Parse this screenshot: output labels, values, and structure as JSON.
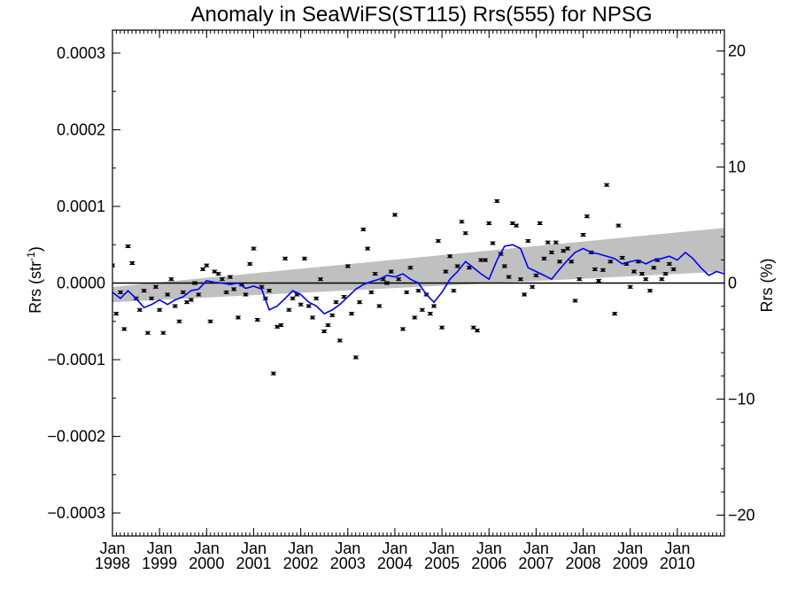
{
  "chart_data": {
    "type": "scatter",
    "title": "Anomaly in SeaWiFS(ST115) Rrs(555) for NPSG",
    "ylabel_left": {
      "main": "Rrs (str",
      "sup": "-1",
      "close": ")"
    },
    "ylabel_right": "Rrs (%)",
    "xlabel": "",
    "xlim": [
      1998.0,
      2011.0
    ],
    "ylim": [
      -0.00033,
      0.00033
    ],
    "ylim_right_percent": [
      -21.8,
      21.8
    ],
    "yticks_left": [
      {
        "value": 0.0003,
        "label": "0.0003"
      },
      {
        "value": 0.0002,
        "label": "0.0002"
      },
      {
        "value": 0.0001,
        "label": "0.0001"
      },
      {
        "value": 0.0,
        "label": "0.0000"
      },
      {
        "value": -0.0001,
        "label": "−0.0001"
      },
      {
        "value": -0.0002,
        "label": "−0.0002"
      },
      {
        "value": -0.0003,
        "label": "−0.0003"
      }
    ],
    "yticks_right": [
      {
        "value": 20,
        "label": "20"
      },
      {
        "value": 10,
        "label": "10"
      },
      {
        "value": 0,
        "label": "0"
      },
      {
        "value": -10,
        "label": "−10"
      },
      {
        "value": -20,
        "label": "−20"
      }
    ],
    "xticks": [
      {
        "value": 1998,
        "month": "Jan",
        "year": "1998"
      },
      {
        "value": 1999,
        "month": "Jan",
        "year": "1999"
      },
      {
        "value": 2000,
        "month": "Jan",
        "year": "2000"
      },
      {
        "value": 2001,
        "month": "Jan",
        "year": "2001"
      },
      {
        "value": 2002,
        "month": "Jan",
        "year": "2002"
      },
      {
        "value": 2003,
        "month": "Jan",
        "year": "2003"
      },
      {
        "value": 2004,
        "month": "Jan",
        "year": "2004"
      },
      {
        "value": 2005,
        "month": "Jan",
        "year": "2005"
      },
      {
        "value": 2006,
        "month": "Jan",
        "year": "2006"
      },
      {
        "value": 2007,
        "month": "Jan",
        "year": "2007"
      },
      {
        "value": 2008,
        "month": "Jan",
        "year": "2008"
      },
      {
        "value": 2009,
        "month": "Jan",
        "year": "2009"
      },
      {
        "value": 2010,
        "month": "Jan",
        "year": "2010"
      }
    ],
    "trend_band": {
      "color": "#c0c0c0",
      "upper": [
        [
          1998.0,
          -5e-06
        ],
        [
          2011.0,
          7.2e-05
        ]
      ],
      "lower": [
        [
          1998.0,
          -2.5e-05
        ],
        [
          2011.0,
          1.5e-05
        ]
      ]
    },
    "zero_line": 0.0,
    "running_mean": {
      "color": "#0000ff",
      "points": [
        [
          1998.0,
          -1.2e-05
        ],
        [
          1998.17,
          -2e-05
        ],
        [
          1998.33,
          -1e-05
        ],
        [
          1998.5,
          -2e-05
        ],
        [
          1998.67,
          -3.2e-05
        ],
        [
          1998.83,
          -2.8e-05
        ],
        [
          1999.0,
          -2.2e-05
        ],
        [
          1999.17,
          -2.8e-05
        ],
        [
          1999.33,
          -2.2e-05
        ],
        [
          1999.5,
          -1.8e-05
        ],
        [
          1999.67,
          -1e-05
        ],
        [
          1999.83,
          -8e-06
        ],
        [
          2000.0,
          3e-06
        ],
        [
          2000.17,
          1e-06
        ],
        [
          2000.33,
          0.0
        ],
        [
          2000.5,
          -2e-06
        ],
        [
          2000.67,
          0.0
        ],
        [
          2000.83,
          -7e-06
        ],
        [
          2001.0,
          -4e-06
        ],
        [
          2001.17,
          -8e-06
        ],
        [
          2001.33,
          -3.5e-05
        ],
        [
          2001.5,
          -3e-05
        ],
        [
          2001.67,
          -2e-05
        ],
        [
          2001.83,
          -1e-05
        ],
        [
          2002.0,
          -1.5e-05
        ],
        [
          2002.17,
          -2.5e-05
        ],
        [
          2002.33,
          -3e-05
        ],
        [
          2002.5,
          -4e-05
        ],
        [
          2002.67,
          -3.5e-05
        ],
        [
          2002.83,
          -2.8e-05
        ],
        [
          2003.0,
          -1.8e-05
        ],
        [
          2003.17,
          -8e-06
        ],
        [
          2003.33,
          -2e-06
        ],
        [
          2003.5,
          2e-06
        ],
        [
          2003.67,
          5e-06
        ],
        [
          2003.83,
          1e-05
        ],
        [
          2004.0,
          8e-06
        ],
        [
          2004.17,
          1.2e-05
        ],
        [
          2004.33,
          5e-06
        ],
        [
          2004.5,
          0.0
        ],
        [
          2004.67,
          -1.5e-05
        ],
        [
          2004.83,
          -2.5e-05
        ],
        [
          2005.0,
          -1.2e-05
        ],
        [
          2005.17,
          5e-06
        ],
        [
          2005.33,
          1.5e-05
        ],
        [
          2005.5,
          2.8e-05
        ],
        [
          2005.67,
          2e-05
        ],
        [
          2005.83,
          1.2e-05
        ],
        [
          2006.0,
          5e-06
        ],
        [
          2006.17,
          3e-05
        ],
        [
          2006.33,
          4.8e-05
        ],
        [
          2006.5,
          5e-05
        ],
        [
          2006.67,
          4.5e-05
        ],
        [
          2006.83,
          2e-05
        ],
        [
          2007.0,
          1.5e-05
        ],
        [
          2007.17,
          1e-05
        ],
        [
          2007.33,
          5e-06
        ],
        [
          2007.5,
          1.8e-05
        ],
        [
          2007.67,
          3e-05
        ],
        [
          2007.83,
          4e-05
        ],
        [
          2008.0,
          4.5e-05
        ],
        [
          2008.17,
          4e-05
        ],
        [
          2008.33,
          3.8e-05
        ],
        [
          2008.5,
          3.5e-05
        ],
        [
          2008.67,
          3.2e-05
        ],
        [
          2008.83,
          2.5e-05
        ],
        [
          2009.0,
          2.8e-05
        ],
        [
          2009.17,
          3e-05
        ],
        [
          2009.33,
          2.5e-05
        ],
        [
          2009.5,
          3e-05
        ],
        [
          2009.67,
          3.2e-05
        ],
        [
          2009.83,
          3.5e-05
        ],
        [
          2010.0,
          3e-05
        ],
        [
          2010.17,
          4e-05
        ],
        [
          2010.33,
          3.2e-05
        ],
        [
          2010.5,
          2e-05
        ],
        [
          2010.67,
          1e-05
        ],
        [
          2010.83,
          1.5e-05
        ],
        [
          2011.0,
          1.2e-05
        ]
      ]
    },
    "series": [
      {
        "marker": "error-bar-point",
        "color": "#000000",
        "points": [
          [
            1998.0,
            2.3e-05
          ],
          [
            1998.08,
            -4e-05
          ],
          [
            1998.17,
            -1.2e-05
          ],
          [
            1998.25,
            -6e-05
          ],
          [
            1998.33,
            4.8e-05
          ],
          [
            1998.42,
            2.6e-05
          ],
          [
            1998.5,
            -2e-05
          ],
          [
            1998.58,
            -3.5e-05
          ],
          [
            1998.67,
            -1e-05
          ],
          [
            1998.75,
            -6.5e-05
          ],
          [
            1998.83,
            -2e-05
          ],
          [
            1998.92,
            -5e-06
          ],
          [
            1999.0,
            -3.5e-05
          ],
          [
            1999.08,
            -6.5e-05
          ],
          [
            1999.17,
            -1.5e-05
          ],
          [
            1999.25,
            5e-06
          ],
          [
            1999.33,
            -3e-05
          ],
          [
            1999.42,
            -5e-05
          ],
          [
            1999.5,
            -1.2e-05
          ],
          [
            1999.58,
            -2.5e-05
          ],
          [
            1999.67,
            -2.2e-05
          ],
          [
            1999.75,
            0.0
          ],
          [
            1999.83,
            -1.5e-05
          ],
          [
            1999.92,
            1.8e-05
          ],
          [
            2000.0,
            2.3e-05
          ],
          [
            2000.08,
            -5e-05
          ],
          [
            2000.17,
            1.5e-05
          ],
          [
            2000.25,
            1.2e-05
          ],
          [
            2000.33,
            5e-06
          ],
          [
            2000.42,
            -1.2e-05
          ],
          [
            2000.5,
            8e-06
          ],
          [
            2000.58,
            -8e-06
          ],
          [
            2000.67,
            -4.5e-05
          ],
          [
            2000.75,
            -2e-06
          ],
          [
            2000.83,
            -1.5e-05
          ],
          [
            2000.92,
            2.5e-05
          ],
          [
            2001.0,
            4.5e-05
          ],
          [
            2001.08,
            -4.8e-05
          ],
          [
            2001.17,
            -5e-06
          ],
          [
            2001.25,
            -2e-05
          ],
          [
            2001.33,
            -1e-05
          ],
          [
            2001.42,
            -0.000118
          ],
          [
            2001.5,
            -5.7e-05
          ],
          [
            2001.58,
            -5.5e-05
          ],
          [
            2001.67,
            3.2e-05
          ],
          [
            2001.75,
            -3.5e-05
          ],
          [
            2001.83,
            -2e-05
          ],
          [
            2001.92,
            -1.5e-05
          ],
          [
            2002.0,
            -2.8e-05
          ],
          [
            2002.08,
            3.2e-05
          ],
          [
            2002.17,
            -3e-05
          ],
          [
            2002.25,
            -4.5e-05
          ],
          [
            2002.33,
            -2e-05
          ],
          [
            2002.42,
            5e-06
          ],
          [
            2002.5,
            -6.3e-05
          ],
          [
            2002.58,
            -5.5e-05
          ],
          [
            2002.67,
            -4.2e-05
          ],
          [
            2002.75,
            -2.5e-05
          ],
          [
            2002.83,
            -7.5e-05
          ],
          [
            2002.92,
            -1.8e-05
          ],
          [
            2003.0,
            2.2e-05
          ],
          [
            2003.08,
            -4e-05
          ],
          [
            2003.17,
            -9.7e-05
          ],
          [
            2003.25,
            -2.5e-05
          ],
          [
            2003.33,
            7e-05
          ],
          [
            2003.42,
            4.5e-05
          ],
          [
            2003.5,
            -1.2e-05
          ],
          [
            2003.58,
            1.2e-05
          ],
          [
            2003.67,
            -3e-05
          ],
          [
            2003.75,
            5e-06
          ],
          [
            2003.83,
            0.0
          ],
          [
            2003.92,
            1.5e-05
          ],
          [
            2004.0,
            8.9e-05
          ],
          [
            2004.08,
            5e-06
          ],
          [
            2004.17,
            -6e-05
          ],
          [
            2004.25,
            -1.2e-05
          ],
          [
            2004.33,
            2e-05
          ],
          [
            2004.42,
            -4.5e-05
          ],
          [
            2004.5,
            -1e-05
          ],
          [
            2004.58,
            -3.5e-05
          ],
          [
            2004.67,
            -1.5e-05
          ],
          [
            2004.75,
            -4e-05
          ],
          [
            2004.83,
            -3e-05
          ],
          [
            2004.92,
            5.5e-05
          ],
          [
            2005.0,
            -5.8e-05
          ],
          [
            2005.08,
            1.5e-05
          ],
          [
            2005.17,
            3.5e-05
          ],
          [
            2005.25,
            -1e-05
          ],
          [
            2005.33,
            2.2e-05
          ],
          [
            2005.42,
            8e-05
          ],
          [
            2005.5,
            6.5e-05
          ],
          [
            2005.58,
            2e-05
          ],
          [
            2005.67,
            -5.8e-05
          ],
          [
            2005.75,
            -6.2e-05
          ],
          [
            2005.83,
            3e-05
          ],
          [
            2005.92,
            3e-05
          ],
          [
            2006.0,
            7.8e-05
          ],
          [
            2006.08,
            5.2e-05
          ],
          [
            2006.17,
            0.000107
          ],
          [
            2006.25,
            3.8e-05
          ],
          [
            2006.33,
            2.2e-05
          ],
          [
            2006.42,
            8e-06
          ],
          [
            2006.5,
            7.8e-05
          ],
          [
            2006.58,
            7.5e-05
          ],
          [
            2006.67,
            5e-06
          ],
          [
            2006.75,
            -1.5e-05
          ],
          [
            2006.83,
            5.5e-05
          ],
          [
            2006.92,
            -5e-06
          ],
          [
            2007.0,
            1e-05
          ],
          [
            2007.08,
            7.8e-05
          ],
          [
            2007.17,
            3.2e-05
          ],
          [
            2007.25,
            5.3e-05
          ],
          [
            2007.33,
            4e-05
          ],
          [
            2007.42,
            5.3e-05
          ],
          [
            2007.5,
            2.8e-05
          ],
          [
            2007.58,
            4.2e-05
          ],
          [
            2007.67,
            4.5e-05
          ],
          [
            2007.75,
            2.8e-05
          ],
          [
            2007.83,
            -2.3e-05
          ],
          [
            2007.92,
            5e-06
          ],
          [
            2008.0,
            6.3e-05
          ],
          [
            2008.08,
            8.7e-05
          ],
          [
            2008.17,
            4e-05
          ],
          [
            2008.25,
            1.8e-05
          ],
          [
            2008.33,
            3e-06
          ],
          [
            2008.42,
            1.7e-05
          ],
          [
            2008.5,
            0.000128
          ],
          [
            2008.58,
            2.8e-05
          ],
          [
            2008.67,
            -4e-05
          ],
          [
            2008.75,
            7.5e-05
          ],
          [
            2008.83,
            3.3e-05
          ],
          [
            2008.92,
            2.5e-05
          ],
          [
            2009.0,
            -5e-06
          ],
          [
            2009.08,
            1.5e-05
          ],
          [
            2009.17,
            2.8e-05
          ],
          [
            2009.25,
            1.2e-05
          ],
          [
            2009.33,
            5e-06
          ],
          [
            2009.42,
            -1e-05
          ],
          [
            2009.5,
            2e-05
          ],
          [
            2009.58,
            3e-05
          ],
          [
            2009.67,
            5e-06
          ],
          [
            2009.75,
            1.2e-05
          ],
          [
            2009.83,
            2.5e-05
          ],
          [
            2009.92,
            1.8e-05
          ]
        ]
      }
    ],
    "grid": false,
    "legend": "none"
  }
}
